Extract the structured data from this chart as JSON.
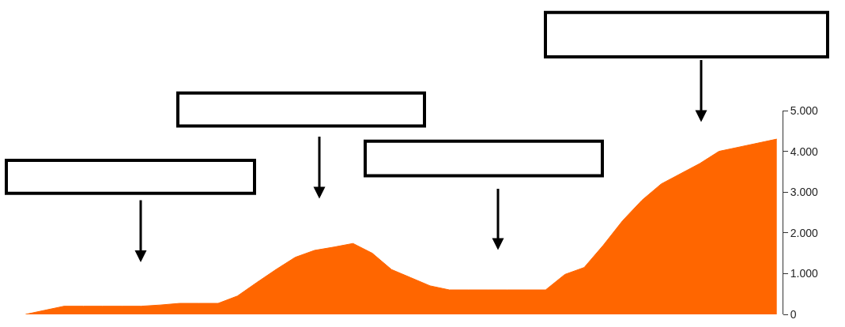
{
  "chart_data": {
    "type": "area",
    "categories": [
      null,
      null,
      null,
      null,
      null,
      null,
      null,
      null,
      null,
      null,
      null,
      null,
      null,
      null,
      null,
      null,
      null,
      null,
      null,
      null,
      null,
      null,
      null,
      null,
      null,
      null,
      null,
      null,
      null,
      null,
      null,
      null,
      null,
      null,
      null,
      null,
      null,
      null,
      null,
      null
    ],
    "series": [
      {
        "color": "#ff6600",
        "values": [
          0,
          100,
          200,
          200,
          200,
          200,
          200,
          230,
          270,
          270,
          270,
          450,
          780,
          1100,
          1400,
          1570,
          1650,
          1740,
          1500,
          1100,
          900,
          700,
          600,
          600,
          600,
          600,
          600,
          600,
          980,
          1150,
          1700,
          2300,
          2800,
          3200,
          3450,
          3700,
          4000,
          4100,
          4200,
          4300
        ]
      }
    ],
    "ylim": [
      0,
      5000
    ],
    "yticks": [
      {
        "value": 0,
        "label": "0"
      },
      {
        "value": 1000,
        "label": "1.000"
      },
      {
        "value": 2000,
        "label": "2.000"
      },
      {
        "value": 3000,
        "label": "3.000"
      },
      {
        "value": 4000,
        "label": "4.000"
      },
      {
        "value": 5000,
        "label": "5.000"
      }
    ],
    "tick_labels": "y"
  }
}
